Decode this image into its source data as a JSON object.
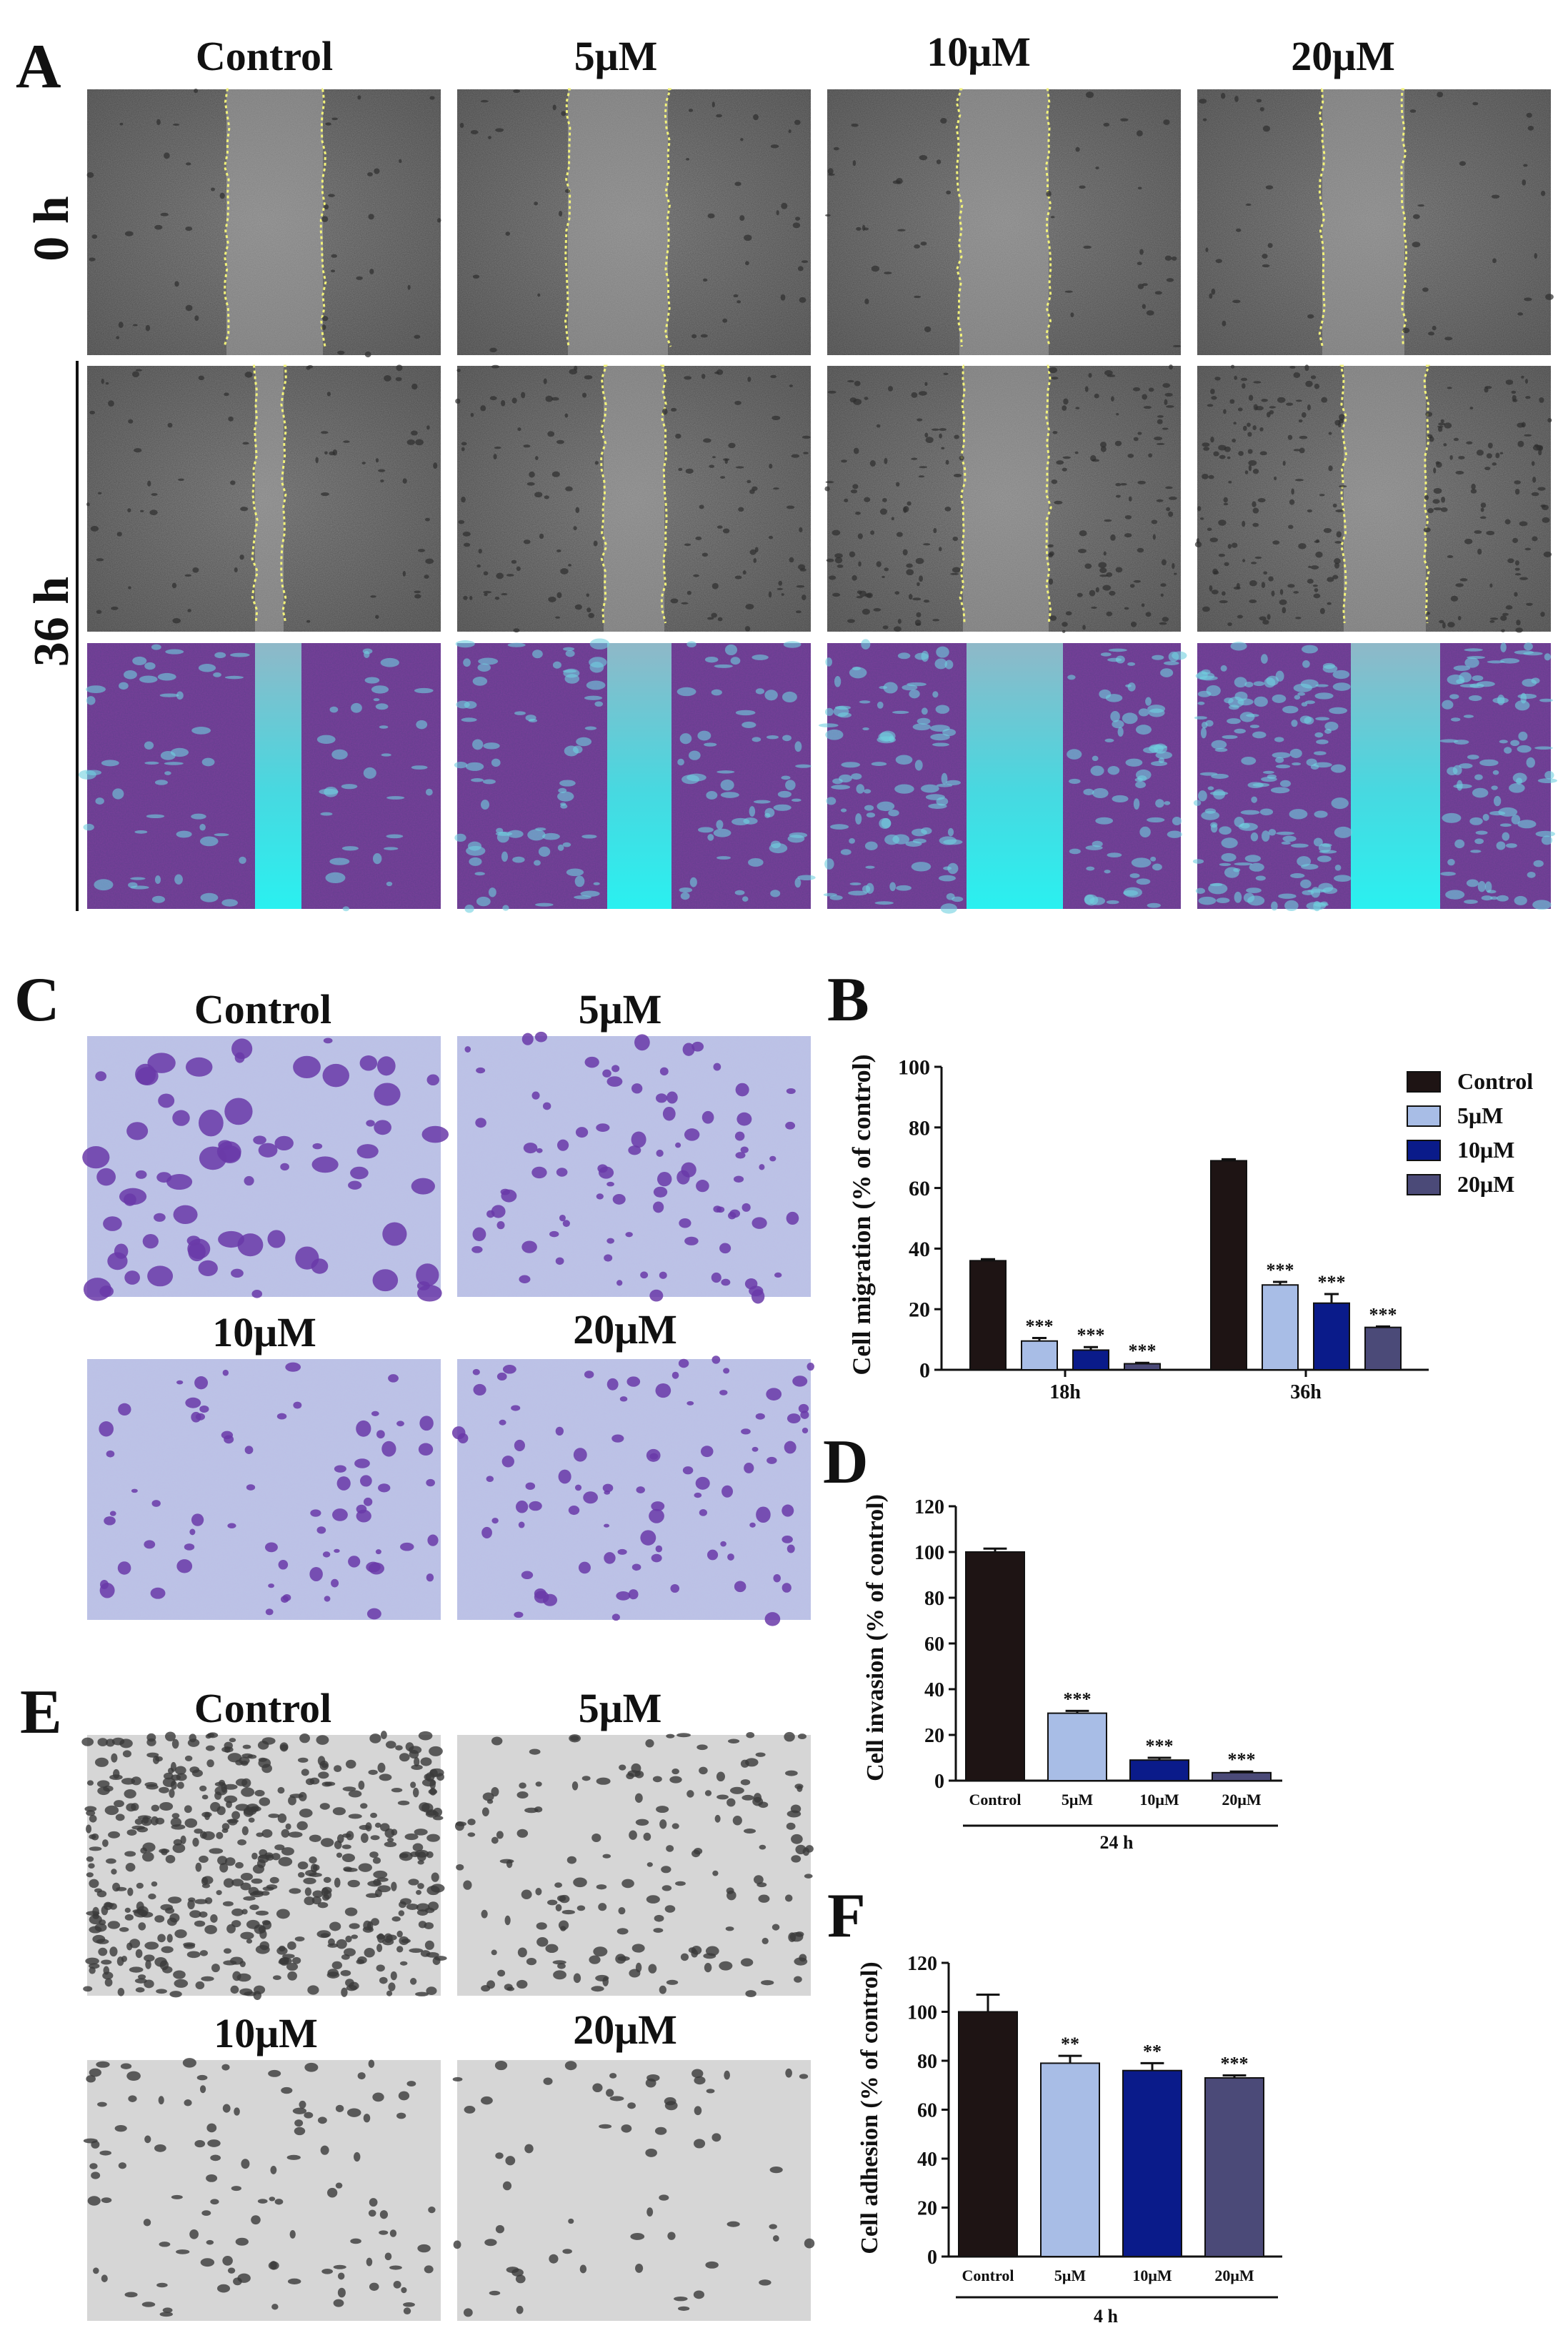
{
  "figure": {
    "panel_letters": {
      "A": "A",
      "B": "B",
      "C": "C",
      "D": "D",
      "E": "E",
      "F": "F"
    },
    "conditions": [
      "Control",
      "5μM",
      "10μM",
      "20μM"
    ],
    "panel_a": {
      "row_labels": [
        "0 h",
        "36 h"
      ],
      "micrographs": {
        "row_0h": {
          "style": "grayscale-phase-contrast",
          "wound_markers": "yellow-dotted-lines"
        },
        "row_36h_phase": {
          "style": "grayscale-phase-contrast",
          "wound_markers": "yellow-dotted-lines"
        },
        "row_36h_stained": {
          "style": "crystal-violet-purple",
          "gap_color": "#3fe0e0"
        }
      }
    },
    "panel_c": {
      "style": "transwell-purple-stain"
    },
    "panel_e": {
      "style": "grayscale-adhesion"
    }
  },
  "chart_data": [
    {
      "id": "B",
      "type": "bar",
      "ylabel": "Cell migration (% of control)",
      "xlabel": "",
      "categories": [
        "18h",
        "36h"
      ],
      "ylim": [
        0,
        100
      ],
      "yticks": [
        0,
        20,
        40,
        60,
        80,
        100
      ],
      "legend": {
        "placement": "top-right",
        "entries": [
          "Control",
          "5μM",
          "10μM",
          "20μM"
        ]
      },
      "series": [
        {
          "name": "Control",
          "values": [
            36,
            69
          ],
          "errors": [
            0.5,
            0.5
          ],
          "sig": [
            "",
            ""
          ]
        },
        {
          "name": "5μM",
          "values": [
            9.5,
            28
          ],
          "errors": [
            1,
            1
          ],
          "sig": [
            "***",
            "***"
          ]
        },
        {
          "name": "10μM",
          "values": [
            6.5,
            22
          ],
          "errors": [
            1,
            3
          ],
          "sig": [
            "***",
            "***"
          ]
        },
        {
          "name": "20μM",
          "values": [
            2,
            14
          ],
          "errors": [
            0.3,
            0.3
          ],
          "sig": [
            "***",
            "***"
          ]
        }
      ],
      "colors": [
        "#1e1414",
        "#a8bde6",
        "#0a1b8a",
        "#4b4a78"
      ]
    },
    {
      "id": "D",
      "type": "bar",
      "ylabel": "Cell invasion (% of control)",
      "xlabel": "24 h",
      "categories": [
        "Control",
        "5μM",
        "10μM",
        "20μM"
      ],
      "values": [
        100,
        29.5,
        9,
        3.5
      ],
      "errors": [
        1.5,
        1,
        1,
        0.5
      ],
      "sig": [
        "",
        "***",
        "***",
        "***"
      ],
      "ylim": [
        0,
        120
      ],
      "yticks": [
        0,
        20,
        40,
        60,
        80,
        100,
        120
      ],
      "colors": [
        "#1e1414",
        "#a8bde6",
        "#0a1b8a",
        "#4b4a78"
      ]
    },
    {
      "id": "F",
      "type": "bar",
      "ylabel": "Cell adhesion (% of control)",
      "xlabel": "4 h",
      "categories": [
        "Control",
        "5μM",
        "10μM",
        "20μM"
      ],
      "values": [
        100,
        79,
        76,
        73
      ],
      "errors": [
        7,
        3,
        3,
        1
      ],
      "sig": [
        "",
        "**",
        "**",
        "***"
      ],
      "ylim": [
        0,
        120
      ],
      "yticks": [
        0,
        20,
        40,
        60,
        80,
        100,
        120
      ],
      "colors": [
        "#1e1414",
        "#a8bde6",
        "#0a1b8a",
        "#4b4a78"
      ]
    }
  ]
}
